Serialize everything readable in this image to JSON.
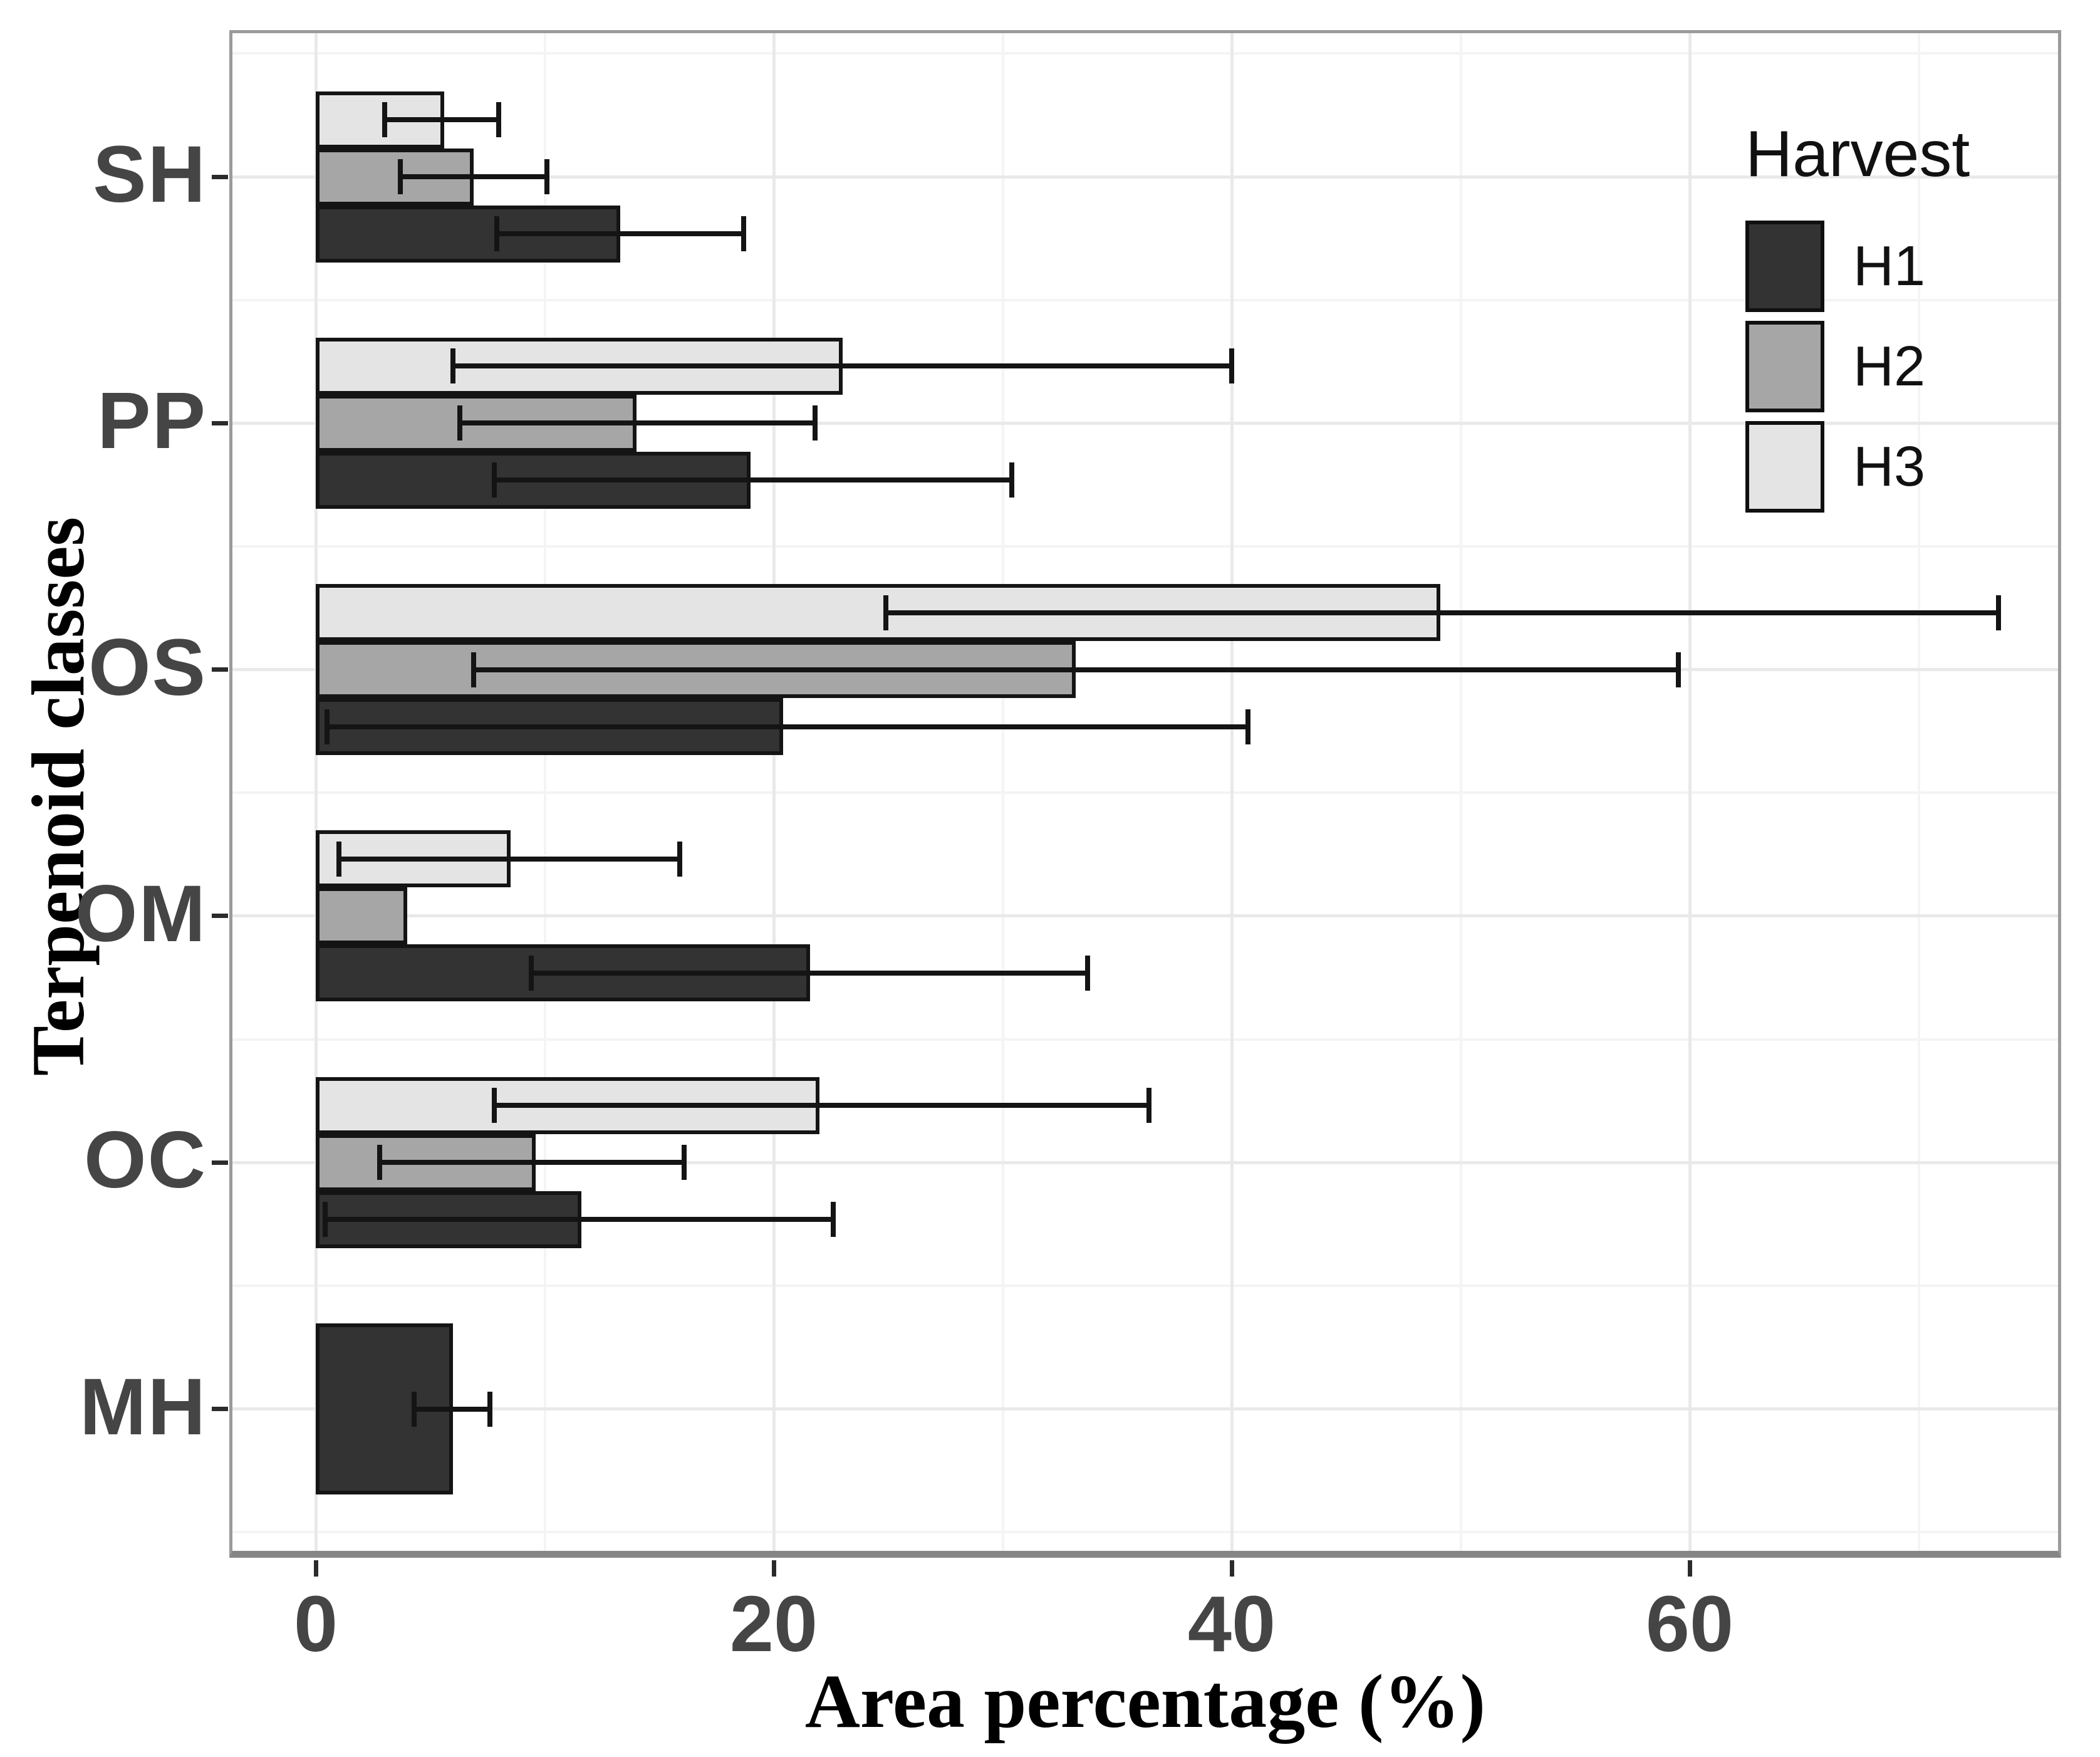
{
  "chart_data": {
    "type": "bar",
    "orientation": "horizontal",
    "xlabel": "Area percentage (%)",
    "ylabel": "Terpenoid classes",
    "xlim": [
      0,
      76
    ],
    "x_major_ticks": [
      0,
      20,
      40,
      60
    ],
    "x_minor_ticks": [
      10,
      30,
      50,
      70
    ],
    "grid": "on",
    "categories": [
      "SH",
      "PP",
      "OS",
      "OM",
      "OC",
      "MH"
    ],
    "series_order_top_to_bottom": [
      "H3",
      "H2",
      "H1"
    ],
    "colors": {
      "H1": "#333333",
      "H2": "#a6a6a6",
      "H3": "#e4e4e4"
    },
    "legend": {
      "title": "Harvest",
      "position": "inside top-right",
      "entries": [
        {
          "label": "H1",
          "color": "#333333"
        },
        {
          "label": "H2",
          "color": "#a6a6a6"
        },
        {
          "label": "H3",
          "color": "#e4e4e4"
        }
      ]
    },
    "error_bars": "min-max whiskers, drawn over bars",
    "groups": [
      {
        "category": "SH",
        "bars": [
          {
            "series": "H3",
            "value": 5.6,
            "err_lo": 3.0,
            "err_hi": 8.0
          },
          {
            "series": "H2",
            "value": 6.9,
            "err_lo": 3.7,
            "err_hi": 10.1
          },
          {
            "series": "H1",
            "value": 13.3,
            "err_lo": 7.9,
            "err_hi": 18.7
          }
        ]
      },
      {
        "category": "PP",
        "bars": [
          {
            "series": "H3",
            "value": 23.0,
            "err_lo": 6.0,
            "err_hi": 40.0
          },
          {
            "series": "H2",
            "value": 14.0,
            "err_lo": 6.3,
            "err_hi": 21.8
          },
          {
            "series": "H1",
            "value": 19.0,
            "err_lo": 7.8,
            "err_hi": 30.4
          }
        ]
      },
      {
        "category": "OS",
        "bars": [
          {
            "series": "H3",
            "value": 49.1,
            "err_lo": 24.9,
            "err_hi": 73.5
          },
          {
            "series": "H2",
            "value": 33.2,
            "err_lo": 6.9,
            "err_hi": 59.5
          },
          {
            "series": "H1",
            "value": 20.4,
            "err_lo": 0.5,
            "err_hi": 40.7
          }
        ]
      },
      {
        "category": "OM",
        "bars": [
          {
            "series": "H3",
            "value": 8.5,
            "err_lo": 1.0,
            "err_hi": 15.9
          },
          {
            "series": "H2",
            "value": 4.0,
            "err_lo": null,
            "err_hi": null
          },
          {
            "series": "H1",
            "value": 21.6,
            "err_lo": 9.4,
            "err_hi": 33.7
          }
        ]
      },
      {
        "category": "OC",
        "bars": [
          {
            "series": "H3",
            "value": 22.0,
            "err_lo": 7.8,
            "err_hi": 36.4
          },
          {
            "series": "H2",
            "value": 9.6,
            "err_lo": 2.8,
            "err_hi": 16.1
          },
          {
            "series": "H1",
            "value": 11.6,
            "err_lo": 0.4,
            "err_hi": 22.6
          }
        ]
      },
      {
        "category": "MH",
        "bars": [
          {
            "series": "H1",
            "value": 6.0,
            "err_lo": 4.3,
            "err_hi": 7.6,
            "full_width": true
          }
        ]
      }
    ]
  }
}
